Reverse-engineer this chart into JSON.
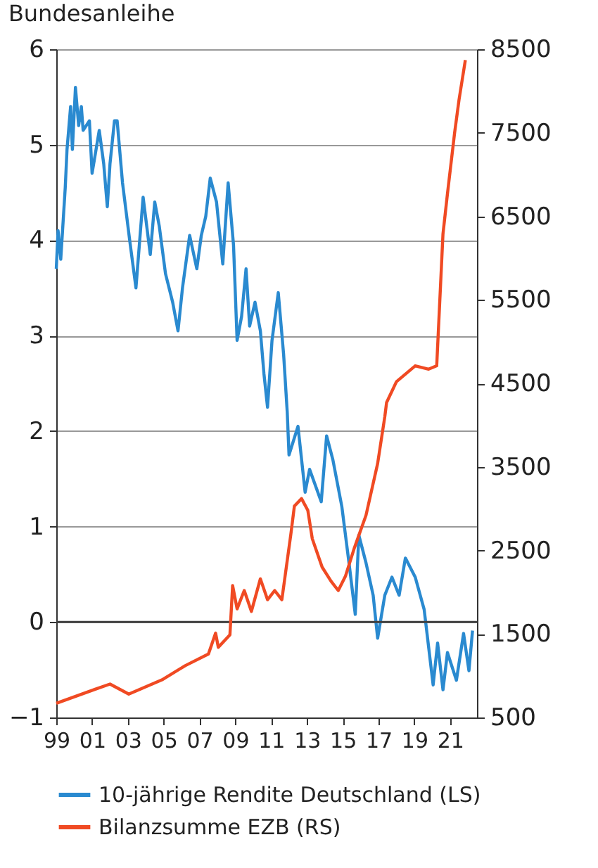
{
  "chart_data": {
    "type": "line",
    "title": "Bundesanleihe",
    "xlim": [
      1999,
      2022.5
    ],
    "xticks": [
      {
        "value": 1999,
        "label": "99"
      },
      {
        "value": 2001,
        "label": "01"
      },
      {
        "value": 2003,
        "label": "03"
      },
      {
        "value": 2005,
        "label": "05"
      },
      {
        "value": 2007,
        "label": "07"
      },
      {
        "value": 2009,
        "label": "09"
      },
      {
        "value": 2011,
        "label": "11"
      },
      {
        "value": 2013,
        "label": "13"
      },
      {
        "value": 2015,
        "label": "15"
      },
      {
        "value": 2017,
        "label": "17"
      },
      {
        "value": 2019,
        "label": "19"
      },
      {
        "value": 2021,
        "label": "21"
      }
    ],
    "ylim": [
      -1,
      6
    ],
    "yticks": [
      -1,
      0,
      1,
      2,
      3,
      4,
      5,
      6
    ],
    "y2lim": [
      500,
      8500
    ],
    "y2ticks": [
      500,
      1500,
      2500,
      3500,
      4500,
      5500,
      6500,
      7500,
      8500
    ],
    "grid": "y",
    "legend": "bottom",
    "line_style": "solid",
    "marker": "none",
    "ref_lines": [
      {
        "axis": "y",
        "value": 0,
        "color": "#404040"
      }
    ],
    "series": [
      {
        "name": "10-jährige Rendite Deutschland (LS)",
        "color": "#2a8ad0",
        "axis": "y",
        "x": [
          1999.0,
          1999.1,
          1999.25,
          1999.5,
          1999.6,
          1999.8,
          1999.9,
          2000.07,
          2000.25,
          2000.4,
          2000.5,
          2000.85,
          2001.0,
          2001.4,
          2001.65,
          2001.85,
          2002.0,
          2002.25,
          2002.4,
          2002.7,
          2003.1,
          2003.45,
          2003.85,
          2004.25,
          2004.5,
          2004.75,
          2005.1,
          2005.5,
          2005.8,
          2006.05,
          2006.45,
          2006.85,
          2007.1,
          2007.35,
          2007.6,
          2007.95,
          2008.3,
          2008.6,
          2008.9,
          2009.1,
          2009.35,
          2009.6,
          2009.8,
          2010.1,
          2010.4,
          2010.6,
          2010.8,
          2011.05,
          2011.4,
          2011.7,
          2011.9,
          2012.0,
          2012.5,
          2012.9,
          2013.15,
          2013.8,
          2014.1,
          2014.45,
          2014.95,
          2015.35,
          2015.7,
          2015.9,
          2016.3,
          2016.7,
          2016.95,
          2017.35,
          2017.75,
          2018.15,
          2018.5,
          2019.05,
          2019.55,
          2020.05,
          2020.3,
          2020.6,
          2020.85,
          2021.35,
          2021.75,
          2022.05,
          2022.25
        ],
        "values": [
          3.7,
          4.1,
          3.8,
          4.55,
          4.95,
          5.4,
          4.95,
          5.6,
          5.2,
          5.4,
          5.15,
          5.25,
          4.7,
          5.15,
          4.8,
          4.35,
          4.8,
          5.25,
          5.25,
          4.6,
          4.0,
          3.5,
          4.45,
          3.85,
          4.4,
          4.15,
          3.65,
          3.35,
          3.05,
          3.5,
          4.05,
          3.7,
          4.05,
          4.25,
          4.65,
          4.4,
          3.75,
          4.6,
          3.95,
          2.95,
          3.2,
          3.7,
          3.1,
          3.35,
          3.05,
          2.6,
          2.25,
          2.95,
          3.45,
          2.8,
          2.2,
          1.75,
          2.05,
          1.36,
          1.6,
          1.26,
          1.95,
          1.7,
          1.21,
          0.62,
          0.08,
          0.91,
          0.62,
          0.28,
          -0.17,
          0.28,
          0.47,
          0.28,
          0.67,
          0.47,
          0.13,
          -0.66,
          -0.22,
          -0.71,
          -0.32,
          -0.61,
          -0.12,
          -0.51,
          -0.09
        ]
      },
      {
        "name": "Bilanzsumme EZB (RS)",
        "color": "#f04a23",
        "axis": "y2",
        "x": [
          1999.0,
          2001.2,
          2002.0,
          2003.05,
          2004.9,
          2006.2,
          2007.5,
          2007.9,
          2008.05,
          2008.7,
          2008.85,
          2009.1,
          2009.5,
          2009.9,
          2010.4,
          2010.8,
          2011.2,
          2011.6,
          2011.85,
          2012.1,
          2012.3,
          2012.7,
          2013.05,
          2013.3,
          2013.85,
          2014.35,
          2014.75,
          2015.15,
          2015.65,
          2016.3,
          2016.95,
          2017.35,
          2017.45,
          2018.0,
          2019.05,
          2019.8,
          2020.25,
          2020.6,
          2020.85,
          2021.25,
          2021.5,
          2021.85
        ],
        "values": [
          670,
          840,
          900,
          780,
          950,
          1120,
          1260,
          1510,
          1340,
          1490,
          2080,
          1800,
          2020,
          1770,
          2160,
          1910,
          2020,
          1910,
          2300,
          2690,
          3030,
          3120,
          2980,
          2640,
          2300,
          2130,
          2020,
          2190,
          2530,
          2920,
          3540,
          4100,
          4270,
          4520,
          4710,
          4670,
          4710,
          6290,
          6770,
          7500,
          7900,
          8370
        ]
      }
    ]
  }
}
